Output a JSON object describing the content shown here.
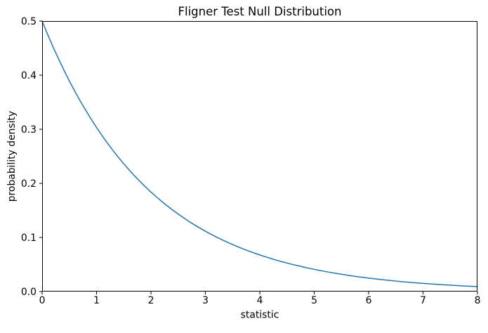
{
  "chart_data": {
    "type": "line",
    "title": "Fligner Test Null Distribution",
    "xlabel": "statistic",
    "ylabel": "probability density",
    "xlim": [
      0,
      8
    ],
    "ylim": [
      0,
      0.5
    ],
    "x_ticks": [
      "0",
      "1",
      "2",
      "3",
      "4",
      "5",
      "6",
      "7",
      "8"
    ],
    "y_ticks": [
      "0.0",
      "0.1",
      "0.2",
      "0.3",
      "0.4",
      "0.5"
    ],
    "grid": false,
    "legend": "none",
    "line_color": "#1f77b4",
    "line_width": 1.5,
    "axis_color": "#000000",
    "series": [
      {
        "name": "null-distribution-pdf",
        "x": [
          0,
          0.1,
          0.2,
          0.3,
          0.4,
          0.5,
          0.6,
          0.7,
          0.8,
          0.9,
          1,
          1.1,
          1.2,
          1.3,
          1.4,
          1.5,
          1.6,
          1.7,
          1.8,
          1.9,
          2,
          2.1,
          2.2,
          2.3,
          2.4,
          2.5,
          2.6,
          2.7,
          2.8,
          2.9,
          3,
          3.1,
          3.2,
          3.3,
          3.4,
          3.5,
          3.6,
          3.7,
          3.8,
          3.9,
          4,
          4.1,
          4.2,
          4.3,
          4.4,
          4.5,
          4.6,
          4.7,
          4.8,
          4.9,
          5,
          5.1,
          5.2,
          5.3,
          5.4,
          5.5,
          5.6,
          5.7,
          5.8,
          5.9,
          6,
          6.1,
          6.2,
          6.3,
          6.4,
          6.5,
          6.6,
          6.7,
          6.8,
          6.9,
          7,
          7.1,
          7.2,
          7.3,
          7.4,
          7.5,
          7.6,
          7.7,
          7.8,
          7.9,
          8
        ],
        "y": [
          0.5,
          0.4756,
          0.4524,
          0.4304,
          0.4094,
          0.3894,
          0.3704,
          0.3523,
          0.3352,
          0.3188,
          0.3033,
          0.2885,
          0.2744,
          0.261,
          0.2483,
          0.2362,
          0.2247,
          0.2137,
          0.2033,
          0.1934,
          0.1839,
          0.175,
          0.1664,
          0.1583,
          0.1506,
          0.1433,
          0.1363,
          0.1296,
          0.1233,
          0.1173,
          0.1116,
          0.1061,
          0.1009,
          0.096,
          0.0913,
          0.0869,
          0.0826,
          0.0786,
          0.0748,
          0.0711,
          0.0677,
          0.0644,
          0.0612,
          0.0582,
          0.0554,
          0.0527,
          0.0501,
          0.0477,
          0.0454,
          0.0431,
          0.041,
          0.039,
          0.0371,
          0.0353,
          0.0336,
          0.032,
          0.0304,
          0.0289,
          0.0275,
          0.0262,
          0.0249,
          0.0237,
          0.0225,
          0.0214,
          0.0204,
          0.0194,
          0.0184,
          0.0175,
          0.0167,
          0.0159,
          0.0151,
          0.0144,
          0.0137,
          0.013,
          0.0124,
          0.0118,
          0.0112,
          0.0106,
          0.0101,
          0.0096,
          0.0092
        ]
      }
    ]
  }
}
